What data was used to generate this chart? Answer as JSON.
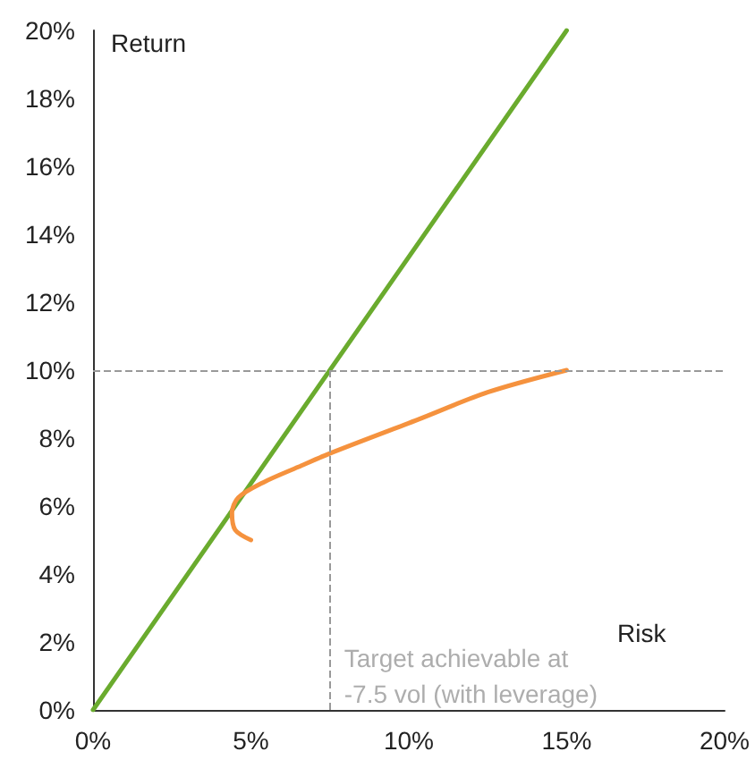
{
  "chart_data": {
    "type": "line",
    "xlabel": "Risk",
    "ylabel": "Return",
    "xlim": [
      0,
      20
    ],
    "xticks": [
      {
        "value": 0,
        "label": "0%"
      },
      {
        "value": 5,
        "label": "5%"
      },
      {
        "value": 10,
        "label": "10%"
      },
      {
        "value": 15,
        "label": "15%"
      },
      {
        "value": 20,
        "label": "20%"
      }
    ],
    "ylim": [
      0,
      20
    ],
    "yticks": [
      {
        "value": 0,
        "label": "0%"
      },
      {
        "value": 2,
        "label": "2%"
      },
      {
        "value": 4,
        "label": "4%"
      },
      {
        "value": 6,
        "label": "6%"
      },
      {
        "value": 8,
        "label": "8%"
      },
      {
        "value": 10,
        "label": "10%"
      },
      {
        "value": 12,
        "label": "12%"
      },
      {
        "value": 14,
        "label": "14%"
      },
      {
        "value": 16,
        "label": "16%"
      },
      {
        "value": 18,
        "label": "18%"
      },
      {
        "value": 20,
        "label": "20%"
      }
    ],
    "series": [
      {
        "color": "#6aab2e",
        "x": [
          0,
          15
        ],
        "values": [
          0,
          20
        ]
      },
      {
        "color": "#f5923e",
        "x": [
          5,
          4.5,
          4.4,
          4.6,
          5.4,
          6.5,
          7.5,
          10.3,
          12.5,
          15
        ],
        "values": [
          5,
          5.3,
          5.8,
          6.25,
          6.7,
          7.15,
          7.55,
          8.55,
          9.35,
          10
        ]
      }
    ],
    "ref_lines": [
      {
        "axis": "y",
        "value": 10,
        "color": "#999999",
        "line_style": "dashed"
      },
      {
        "axis": "x",
        "value": 7.5,
        "color": "#999999",
        "line_style": "dashed"
      }
    ],
    "annotations": [
      {
        "text": "Target achievable at\n-7.5 vol (with leverage)",
        "x": 7.5,
        "y": 1
      }
    ],
    "grid": false,
    "marker": "none",
    "line_style": "solid"
  }
}
